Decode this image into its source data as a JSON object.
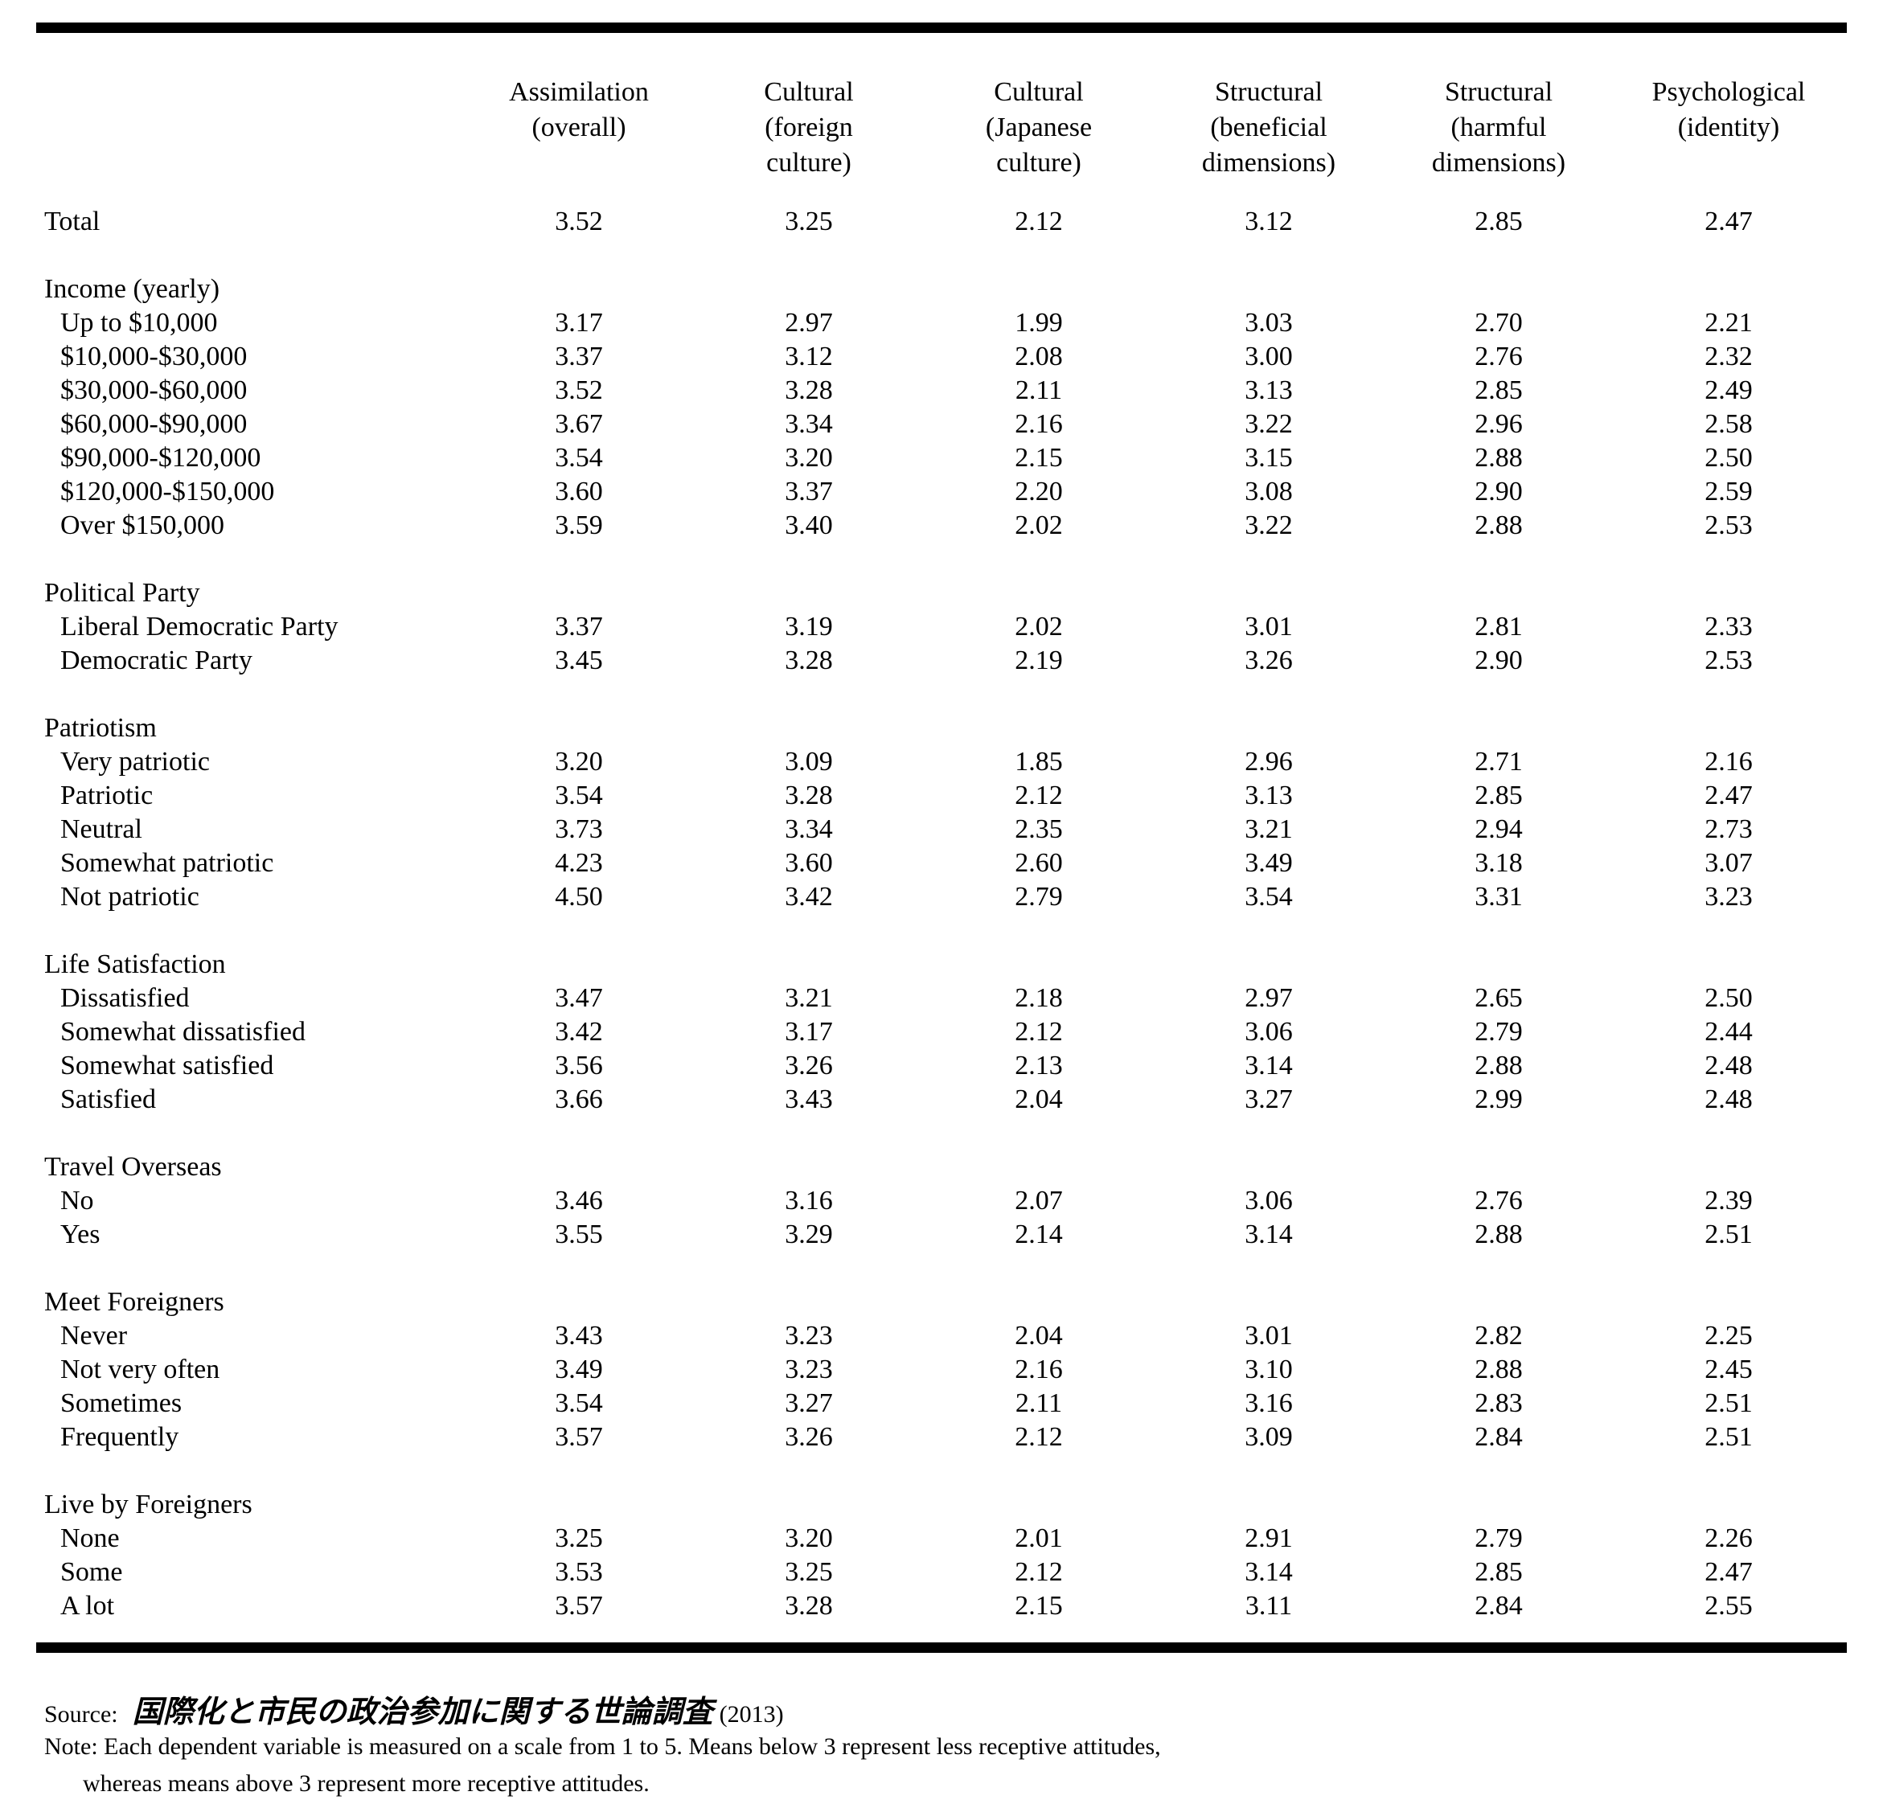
{
  "page": {
    "background_color": "#ffffff",
    "text_color": "#000000"
  },
  "table": {
    "column_headers": [
      "Assimilation\n(overall)",
      "Cultural\n(foreign\nculture)",
      "Cultural\n(Japanese\nculture)",
      "Structural\n(beneficial\ndimensions)",
      "Structural\n(harmful\ndimensions)",
      "Psychological\n(identity)"
    ],
    "scale_note": "Scale 1 to 5",
    "sections": [
      {
        "header": "",
        "rows": [
          {
            "label": "Total",
            "values": [
              "3.52",
              "3.25",
              "2.12",
              "3.12",
              "2.85",
              "2.47"
            ]
          }
        ]
      },
      {
        "header": "Income (yearly)",
        "rows": [
          {
            "label": "Up to $10,000",
            "values": [
              "3.17",
              "2.97",
              "1.99",
              "3.03",
              "2.70",
              "2.21"
            ]
          },
          {
            "label": "$10,000-$30,000",
            "values": [
              "3.37",
              "3.12",
              "2.08",
              "3.00",
              "2.76",
              "2.32"
            ]
          },
          {
            "label": "$30,000-$60,000",
            "values": [
              "3.52",
              "3.28",
              "2.11",
              "3.13",
              "2.85",
              "2.49"
            ]
          },
          {
            "label": "$60,000-$90,000",
            "values": [
              "3.67",
              "3.34",
              "2.16",
              "3.22",
              "2.96",
              "2.58"
            ]
          },
          {
            "label": "$90,000-$120,000",
            "values": [
              "3.54",
              "3.20",
              "2.15",
              "3.15",
              "2.88",
              "2.50"
            ]
          },
          {
            "label": "$120,000-$150,000",
            "values": [
              "3.60",
              "3.37",
              "2.20",
              "3.08",
              "2.90",
              "2.59"
            ]
          },
          {
            "label": "Over $150,000",
            "values": [
              "3.59",
              "3.40",
              "2.02",
              "3.22",
              "2.88",
              "2.53"
            ]
          }
        ]
      },
      {
        "header": "Political Party",
        "rows": [
          {
            "label": "Liberal Democratic Party",
            "values": [
              "3.37",
              "3.19",
              "2.02",
              "3.01",
              "2.81",
              "2.33"
            ]
          },
          {
            "label": "Democratic Party",
            "values": [
              "3.45",
              "3.28",
              "2.19",
              "3.26",
              "2.90",
              "2.53"
            ]
          }
        ]
      },
      {
        "header": "Patriotism",
        "rows": [
          {
            "label": "Very patriotic",
            "values": [
              "3.20",
              "3.09",
              "1.85",
              "2.96",
              "2.71",
              "2.16"
            ]
          },
          {
            "label": "Patriotic",
            "values": [
              "3.54",
              "3.28",
              "2.12",
              "3.13",
              "2.85",
              "2.47"
            ]
          },
          {
            "label": "Neutral",
            "values": [
              "3.73",
              "3.34",
              "2.35",
              "3.21",
              "2.94",
              "2.73"
            ]
          },
          {
            "label": "Somewhat patriotic",
            "values": [
              "4.23",
              "3.60",
              "2.60",
              "3.49",
              "3.18",
              "3.07"
            ]
          },
          {
            "label": "Not patriotic",
            "values": [
              "4.50",
              "3.42",
              "2.79",
              "3.54",
              "3.31",
              "3.23"
            ]
          }
        ]
      },
      {
        "header": "Life Satisfaction",
        "rows": [
          {
            "label": "Dissatisfied",
            "values": [
              "3.47",
              "3.21",
              "2.18",
              "2.97",
              "2.65",
              "2.50"
            ]
          },
          {
            "label": "Somewhat dissatisfied",
            "values": [
              "3.42",
              "3.17",
              "2.12",
              "3.06",
              "2.79",
              "2.44"
            ]
          },
          {
            "label": "Somewhat satisfied",
            "values": [
              "3.56",
              "3.26",
              "2.13",
              "3.14",
              "2.88",
              "2.48"
            ]
          },
          {
            "label": "Satisfied",
            "values": [
              "3.66",
              "3.43",
              "2.04",
              "3.27",
              "2.99",
              "2.48"
            ]
          }
        ]
      },
      {
        "header": "Travel Overseas",
        "rows": [
          {
            "label": "No",
            "values": [
              "3.46",
              "3.16",
              "2.07",
              "3.06",
              "2.76",
              "2.39"
            ]
          },
          {
            "label": "Yes",
            "values": [
              "3.55",
              "3.29",
              "2.14",
              "3.14",
              "2.88",
              "2.51"
            ]
          }
        ]
      },
      {
        "header": "Meet Foreigners",
        "rows": [
          {
            "label": "Never",
            "values": [
              "3.43",
              "3.23",
              "2.04",
              "3.01",
              "2.82",
              "2.25"
            ]
          },
          {
            "label": "Not very often",
            "values": [
              "3.49",
              "3.23",
              "2.16",
              "3.10",
              "2.88",
              "2.45"
            ]
          },
          {
            "label": "Sometimes",
            "values": [
              "3.54",
              "3.27",
              "2.11",
              "3.16",
              "2.83",
              "2.51"
            ]
          },
          {
            "label": "Frequently",
            "values": [
              "3.57",
              "3.26",
              "2.12",
              "3.09",
              "2.84",
              "2.51"
            ]
          }
        ]
      },
      {
        "header": "Live by Foreigners",
        "rows": [
          {
            "label": "None",
            "values": [
              "3.25",
              "3.20",
              "2.01",
              "2.91",
              "2.79",
              "2.26"
            ]
          },
          {
            "label": "Some",
            "values": [
              "3.53",
              "3.25",
              "2.12",
              "3.14",
              "2.85",
              "2.47"
            ]
          },
          {
            "label": "A lot",
            "values": [
              "3.57",
              "3.28",
              "2.15",
              "3.11",
              "2.84",
              "2.55"
            ]
          }
        ]
      }
    ]
  },
  "footer": {
    "source_prefix": "Source:",
    "source_title_jp": "国際化と市民の政治参加に関する世論調査",
    "source_year": "(2013)",
    "note_line1": "Note: Each dependent variable is measured on a scale from 1 to 5. Means below 3 represent less receptive attitudes,",
    "note_line2": "whereas means above 3 represent more receptive attitudes."
  }
}
